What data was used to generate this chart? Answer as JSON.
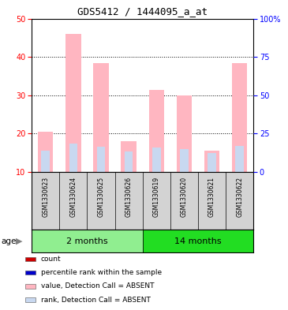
{
  "title": "GDS5412 / 1444095_a_at",
  "samples": [
    "GSM1330623",
    "GSM1330624",
    "GSM1330625",
    "GSM1330626",
    "GSM1330619",
    "GSM1330620",
    "GSM1330621",
    "GSM1330622"
  ],
  "value_absent": [
    20.5,
    46.0,
    38.5,
    18.0,
    31.5,
    30.0,
    15.5,
    38.5
  ],
  "rank_absent": [
    14.0,
    18.5,
    16.5,
    13.5,
    16.0,
    15.0,
    12.5,
    17.0
  ],
  "ylim_left": [
    10,
    50
  ],
  "ylim_right": [
    0,
    100
  ],
  "left_ticks": [
    10,
    20,
    30,
    40,
    50
  ],
  "right_ticks": [
    0,
    25,
    50,
    75,
    100
  ],
  "right_tick_labels": [
    "0",
    "25",
    "50",
    "75",
    "100%"
  ],
  "color_value_absent": "#FFB6C1",
  "color_rank_absent": "#C8D8F0",
  "bar_width": 0.55,
  "group1_color": "#90EE90",
  "group2_color": "#22DD22",
  "legend_items": [
    {
      "label": "count",
      "color": "#CC0000"
    },
    {
      "label": "percentile rank within the sample",
      "color": "#0000CC"
    },
    {
      "label": "value, Detection Call = ABSENT",
      "color": "#FFB6C1"
    },
    {
      "label": "rank, Detection Call = ABSENT",
      "color": "#C8D8F0"
    }
  ]
}
